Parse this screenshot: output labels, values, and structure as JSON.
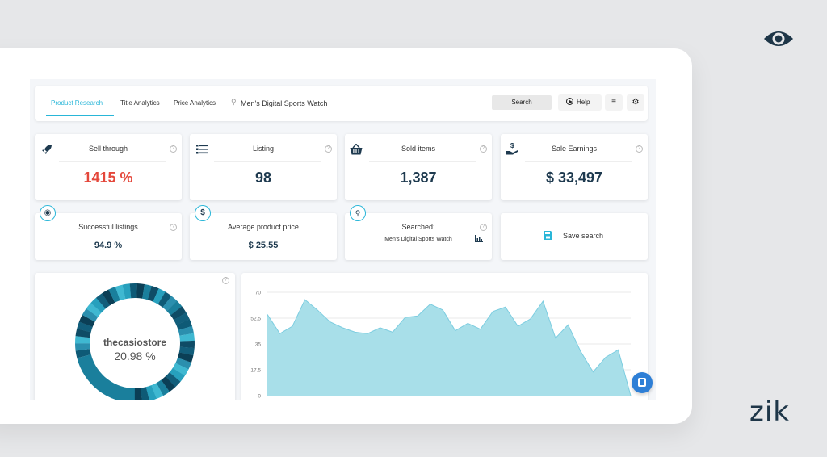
{
  "brand": {
    "wordmark": "zik",
    "logo_icon": "eye-icon"
  },
  "toolbar": {
    "tabs": [
      {
        "label": "Product Research",
        "active": true
      },
      {
        "label": "Title Analytics",
        "active": false
      },
      {
        "label": "Price Analytics",
        "active": false
      }
    ],
    "search_icon": "search-icon",
    "search_value": "Men's Digital Sports Watch",
    "search_button": "Search",
    "help_button": "Help",
    "filter_icon": "sliders-icon",
    "settings_icon": "gear-icon"
  },
  "stats": [
    {
      "key": "sell_through",
      "title": "Sell through",
      "value": "1415 %",
      "icon": "rocket-icon",
      "value_color": "#e4473b"
    },
    {
      "key": "listing",
      "title": "Listing",
      "value": "98",
      "icon": "list-icon",
      "value_color": "#1e3a4f"
    },
    {
      "key": "sold_items",
      "title": "Sold items",
      "value": "1,387",
      "icon": "basket-icon",
      "value_color": "#1e3a4f"
    },
    {
      "key": "sale_earnings",
      "title": "Sale Earnings",
      "value": "$ 33,497",
      "icon": "money-hand-icon",
      "value_color": "#1e3a4f"
    }
  ],
  "secondary": {
    "successful_listings": {
      "title": "Successful listings",
      "value": "94.9 %",
      "icon": "medal-icon"
    },
    "average_price": {
      "title": "Average product price",
      "value": "$ 25.55",
      "icon": "dollar-icon"
    },
    "searched": {
      "title": "Searched:",
      "value": "Men's Digital Sports Watch",
      "icon": "search-icon",
      "chart_icon": "bar-chart-icon"
    },
    "save_search": {
      "label": "Save search",
      "icon": "save-icon"
    }
  },
  "donut": {
    "center_label": "thecasiostore",
    "center_value": "20.98 %",
    "highlight_fraction": 0.2098,
    "colors": [
      "#0e5a76",
      "#1a7f9c",
      "#27a0bd",
      "#0b3f56",
      "#3fb8d1",
      "#125e7b",
      "#2b8fae",
      "#0f4c66"
    ]
  },
  "accent": "#29b6d8",
  "chart_data": {
    "type": "area",
    "y_ticks": [
      "0",
      "17.5",
      "35",
      "52.5",
      "70"
    ],
    "ylim": [
      0,
      70
    ],
    "values": [
      55,
      42,
      47,
      65,
      58,
      50,
      46,
      43,
      42,
      46,
      43,
      53,
      54,
      62,
      58,
      44,
      49,
      45,
      57,
      60,
      47,
      52,
      64,
      39,
      48,
      30,
      16,
      26,
      31,
      0
    ],
    "fill": "#a8dfe9",
    "stroke": "#7dcde0",
    "grid": true
  }
}
